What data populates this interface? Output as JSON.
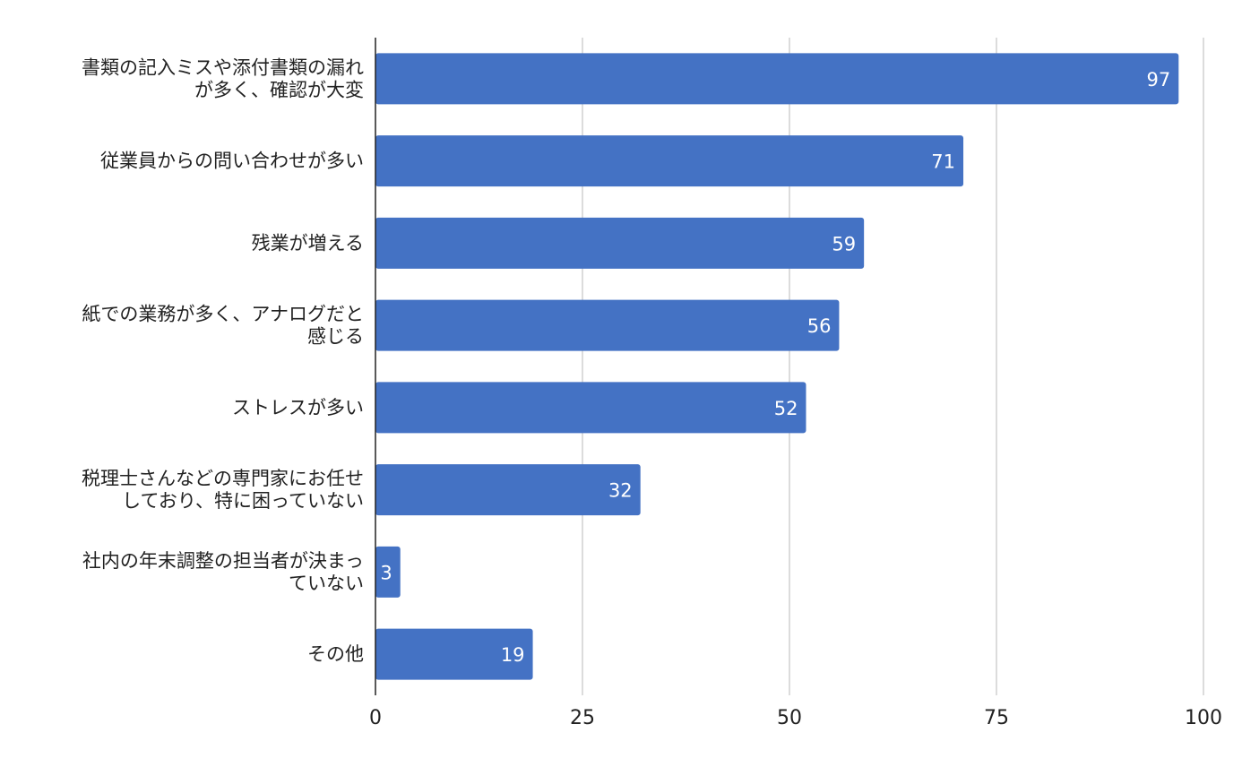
{
  "chart_data": {
    "type": "bar",
    "orientation": "horizontal",
    "categories": [
      [
        "書類の記入ミスや添付書類の漏れ",
        "が多く、確認が大変"
      ],
      [
        "従業員からの問い合わせが多い"
      ],
      [
        "残業が増える"
      ],
      [
        "紙での業務が多く、アナログだと",
        "感じる"
      ],
      [
        "ストレスが多い"
      ],
      [
        "税理士さんなどの専門家にお任せ",
        "しており、特に困っていない"
      ],
      [
        "社内の年末調整の担当者が決まっ",
        "ていない"
      ],
      [
        "その他"
      ]
    ],
    "values": [
      97,
      71,
      59,
      56,
      52,
      32,
      3,
      19
    ],
    "value_labels": [
      "97",
      "71",
      "59",
      "56",
      "52",
      "32",
      "3",
      "19"
    ],
    "xlim": [
      0,
      100
    ],
    "x_ticks": [
      0,
      25,
      50,
      75,
      100
    ],
    "x_tick_labels": [
      "0",
      "25",
      "50",
      "75",
      "100"
    ],
    "grid": true,
    "bar_color": "#4472c4",
    "grid_color": "#c8c8c8",
    "axis_color": "#222222",
    "title": "",
    "xlabel": "",
    "ylabel": ""
  }
}
